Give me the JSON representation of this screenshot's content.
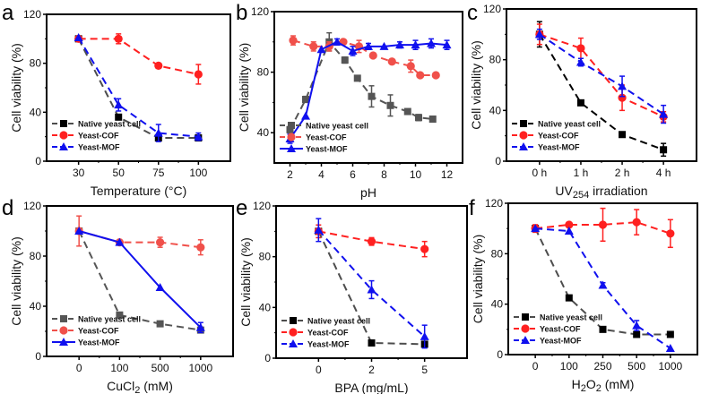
{
  "figure": {
    "colors": {
      "native": "#000000",
      "native_gray": "#4d4d4d",
      "cof": "#ff2020",
      "cof_light": "#f0504a",
      "mof": "#1010ee"
    },
    "legend_labels": [
      "Native yeast cell",
      "Yeast-COF",
      "Yeast-MOF"
    ]
  },
  "chart_data": [
    {
      "panel": "a",
      "type": "line",
      "title": "",
      "xlabel": "Temperature (°C)",
      "ylabel": "Cell viability (%)",
      "x_type": "categorical",
      "categories": [
        "30",
        "50",
        "75",
        "100"
      ],
      "ylim": [
        0,
        120
      ],
      "yticks": [
        0,
        40,
        80,
        120
      ],
      "grid": false,
      "legend": "bottom-left",
      "series": [
        {
          "name": "Native yeast cell",
          "color": "#000000",
          "line_color": "#4d4d4d",
          "marker": "square",
          "dash": true,
          "values": [
            100,
            36,
            19,
            19
          ],
          "errors": [
            1,
            1,
            2,
            2
          ]
        },
        {
          "name": "Yeast-COF",
          "color": "#ff2020",
          "line_color": "#ff2020",
          "marker": "circle",
          "dash": true,
          "values": [
            100,
            100,
            78,
            71
          ],
          "errors": [
            1,
            4,
            2,
            8
          ]
        },
        {
          "name": "Yeast-MOF",
          "color": "#1010ee",
          "line_color": "#1010ee",
          "marker": "triangle",
          "dash": true,
          "values": [
            101,
            46,
            23,
            20
          ],
          "errors": [
            1,
            5,
            7,
            3
          ]
        }
      ]
    },
    {
      "panel": "b",
      "type": "line",
      "title": "",
      "xlabel": "pH",
      "ylabel": "Cell viability (%)",
      "x_type": "numeric",
      "xlim": [
        1,
        13
      ],
      "xticks": [
        2,
        4,
        6,
        8,
        10,
        12
      ],
      "ylim": [
        20,
        120
      ],
      "yticks": [
        40,
        80,
        120
      ],
      "grid": false,
      "legend": "bottom-left",
      "series": [
        {
          "name": "Native yeast cell",
          "color": "#555555",
          "line_color": "#555555",
          "marker": "square",
          "dash": true,
          "x": [
            2,
            3,
            4.5,
            5.5,
            6.3,
            7.2,
            8.4,
            9.5,
            10.2,
            11.1
          ],
          "values": [
            42,
            62,
            100,
            88,
            76,
            64,
            58,
            54,
            50,
            49
          ],
          "errors": [
            2,
            2,
            6,
            2,
            1,
            7,
            7,
            1,
            2,
            1
          ]
        },
        {
          "name": "Yeast-COF",
          "color": "#f0504a",
          "line_color": "#f0504a",
          "marker": "circle",
          "dash": true,
          "x": [
            2.2,
            3.5,
            4.5,
            5.4,
            6.4,
            7.3,
            8.5,
            9.7,
            10.3,
            11.3
          ],
          "values": [
            101,
            97,
            97,
            100,
            97,
            91,
            87,
            84,
            78,
            78
          ],
          "errors": [
            3,
            3,
            3,
            1,
            4,
            1,
            1,
            4,
            1,
            1
          ]
        },
        {
          "name": "Yeast-MOF",
          "color": "#1010ee",
          "line_color": "#1010ee",
          "marker": "triangle",
          "dash": false,
          "x": [
            2,
            3,
            4,
            5,
            6,
            7,
            8,
            9,
            10,
            11,
            12
          ],
          "values": [
            36,
            51,
            95,
            100,
            94,
            97,
            97,
            98,
            98,
            99,
            98
          ],
          "errors": [
            3,
            1,
            1,
            2,
            3,
            2,
            1,
            2,
            3,
            3,
            3
          ]
        }
      ]
    },
    {
      "panel": "c",
      "type": "line",
      "title": "",
      "xlabel": "UV",
      "xlabel_sub": "254",
      "xlabel_suffix": " irradiation",
      "ylabel": "Cell viability (%)",
      "x_type": "categorical",
      "categories": [
        "0 h",
        "1 h",
        "2 h",
        "4 h"
      ],
      "ylim": [
        0,
        120
      ],
      "yticks": [
        0,
        40,
        80,
        120
      ],
      "grid": false,
      "legend": "bottom-left",
      "series": [
        {
          "name": "Native yeast cell",
          "color": "#000000",
          "line_color": "#000000",
          "marker": "square",
          "dash": true,
          "values": [
            100,
            46,
            21,
            9
          ],
          "errors": [
            10,
            2,
            1,
            5
          ]
        },
        {
          "name": "Yeast-COF",
          "color": "#ff2020",
          "line_color": "#ff2020",
          "marker": "circle",
          "dash": true,
          "values": [
            100,
            89,
            50,
            35
          ],
          "errors": [
            8,
            8,
            10,
            4
          ]
        },
        {
          "name": "Yeast-MOF",
          "color": "#1010ee",
          "line_color": "#1010ee",
          "marker": "triangle",
          "dash": true,
          "values": [
            100,
            78,
            59,
            37
          ],
          "errors": [
            4,
            3,
            8,
            7
          ]
        }
      ]
    },
    {
      "panel": "d",
      "type": "line",
      "title": "",
      "xlabel": "CuCl",
      "xlabel_sub": "2",
      "xlabel_suffix": " (mM)",
      "ylabel": "Cell viability (%)",
      "x_type": "categorical",
      "categories": [
        "0",
        "100",
        "500",
        "1000"
      ],
      "ylim": [
        0,
        120
      ],
      "yticks": [
        0,
        40,
        80,
        120
      ],
      "grid": false,
      "legend": "bottom-left",
      "series": [
        {
          "name": "Native yeast cell",
          "color": "#555555",
          "line_color": "#555555",
          "marker": "square",
          "dash": true,
          "values": [
            100,
            33,
            26,
            21
          ],
          "errors": [
            1,
            1,
            1,
            1
          ]
        },
        {
          "name": "Yeast-COF",
          "color": "#f0504a",
          "line_color": "#f0504a",
          "marker": "circle",
          "dash": true,
          "values": [
            100,
            91,
            91,
            87
          ],
          "errors": [
            12,
            1,
            4,
            6
          ]
        },
        {
          "name": "Yeast-MOF",
          "color": "#1010ee",
          "line_color": "#1010ee",
          "marker": "triangle",
          "dash": false,
          "values": [
            100,
            91,
            55,
            23
          ],
          "errors": [
            1,
            1,
            1,
            4
          ]
        }
      ]
    },
    {
      "panel": "e",
      "type": "line",
      "title": "",
      "xlabel": "BPA (mg/mL)",
      "ylabel": "Cell viability (%)",
      "x_type": "categorical",
      "categories": [
        "0",
        "2",
        "5"
      ],
      "ylim": [
        0,
        120
      ],
      "yticks": [
        0,
        40,
        80,
        120
      ],
      "grid": false,
      "legend": "bottom-left",
      "series": [
        {
          "name": "Native yeast cell",
          "color": "#000000",
          "line_color": "#4d4d4d",
          "marker": "square",
          "dash": true,
          "values": [
            100,
            12,
            11
          ],
          "errors": [
            1,
            1,
            2
          ]
        },
        {
          "name": "Yeast-COF",
          "color": "#ff2020",
          "line_color": "#ff2020",
          "marker": "circle",
          "dash": true,
          "values": [
            100,
            92,
            86
          ],
          "errors": [
            5,
            3,
            6
          ]
        },
        {
          "name": "Yeast-MOF",
          "color": "#1010ee",
          "line_color": "#1010ee",
          "marker": "triangle",
          "dash": true,
          "values": [
            101,
            54,
            17
          ],
          "errors": [
            9,
            7,
            9
          ]
        }
      ]
    },
    {
      "panel": "f",
      "type": "line",
      "title": "",
      "xlabel": "H",
      "xlabel_sub": "2",
      "xlabel_mid": "O",
      "xlabel_sub2": "2",
      "xlabel_suffix": " (mM)",
      "ylabel": "Cell viability (%)",
      "x_type": "categorical",
      "categories": [
        "0",
        "100",
        "250",
        "500",
        "1000"
      ],
      "ylim": [
        0,
        120
      ],
      "yticks": [
        0,
        40,
        80,
        120
      ],
      "grid": false,
      "legend": "bottom-left",
      "series": [
        {
          "name": "Native yeast cell",
          "color": "#000000",
          "line_color": "#4d4d4d",
          "marker": "square",
          "dash": true,
          "values": [
            100,
            45,
            20,
            16,
            16
          ],
          "errors": [
            1,
            1,
            1,
            1,
            1
          ]
        },
        {
          "name": "Yeast-COF",
          "color": "#ff2020",
          "line_color": "#ff2020",
          "marker": "circle",
          "dash": true,
          "values": [
            100,
            103,
            103,
            105,
            96
          ],
          "errors": [
            3,
            1,
            13,
            10,
            11
          ]
        },
        {
          "name": "Yeast-MOF",
          "color": "#1010ee",
          "line_color": "#1010ee",
          "marker": "triangle",
          "dash": true,
          "values": [
            100,
            98,
            55,
            23,
            5
          ],
          "errors": [
            1,
            1,
            2,
            4,
            1
          ]
        }
      ]
    }
  ]
}
